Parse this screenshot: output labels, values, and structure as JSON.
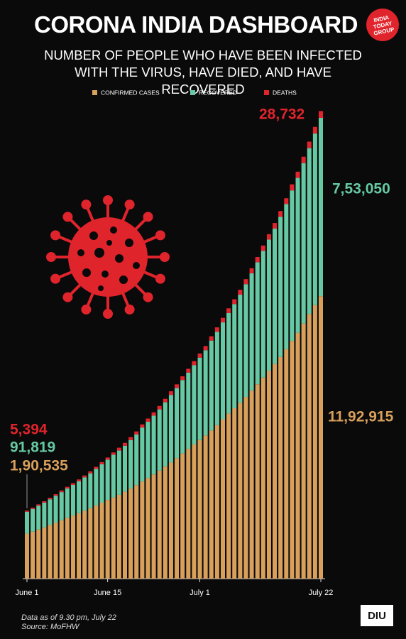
{
  "chart_data": {
    "type": "stacked-bar",
    "title": "CORONA INDIA DASHBOARD",
    "subtitle": "NUMBER OF PEOPLE WHO HAVE BEEN INFECTED WITH THE VIRUS, HAVE DIED, AND HAVE RECOVERED",
    "categories": [
      "June 1",
      null,
      null,
      null,
      null,
      null,
      null,
      null,
      null,
      null,
      null,
      null,
      null,
      null,
      "June 15",
      null,
      null,
      null,
      null,
      null,
      null,
      null,
      null,
      null,
      null,
      null,
      null,
      null,
      null,
      null,
      "July 1",
      null,
      null,
      null,
      null,
      null,
      null,
      null,
      null,
      null,
      null,
      null,
      null,
      null,
      null,
      null,
      null,
      null,
      null,
      null,
      null,
      "July 22"
    ],
    "series": [
      {
        "name": "CONFIRMED CASES",
        "color": "#d9a05b",
        "values": [
          190535,
          198706,
          207615,
          216919,
          226770,
          236657,
          246628,
          256611,
          266598,
          276583,
          286579,
          297535,
          308993,
          320922,
          332424,
          343091,
          354065,
          366946,
          380532,
          395048,
          410461,
          425282,
          440215,
          456183,
          473105,
          490401,
          508953,
          528859,
          548318,
          566840,
          585493,
          604641,
          625544,
          648315,
          673165,
          697413,
          719665,
          742417,
          767296,
          793802,
          820916,
          849553,
          878254,
          906752,
          936181,
          968876,
          1003832,
          1038716,
          1077618,
          1118043,
          1155191,
          1192915
        ],
        "value_labels": [
          "1,90,535",
          null,
          null,
          null,
          null,
          null,
          null,
          null,
          null,
          null,
          null,
          null,
          null,
          null,
          null,
          null,
          null,
          null,
          null,
          null,
          null,
          null,
          null,
          null,
          null,
          null,
          null,
          null,
          null,
          null,
          null,
          null,
          null,
          null,
          null,
          null,
          null,
          null,
          null,
          null,
          null,
          null,
          null,
          null,
          null,
          null,
          null,
          null,
          null,
          null,
          null,
          "11,92,915"
        ]
      },
      {
        "name": "RECOVERED",
        "color": "#66c9a4",
        "values": [
          91819,
          95527,
          100303,
          104107,
          108450,
          113233,
          118695,
          124095,
          129215,
          134670,
          141029,
          147195,
          154330,
          162379,
          169798,
          180013,
          186935,
          194325,
          204711,
          213831,
          227756,
          237196,
          248190,
          258685,
          271697,
          285637,
          295881,
          309713,
          321723,
          334822,
          347979,
          359860,
          379892,
          394227,
          409083,
          424433,
          439948,
          456831,
          476378,
          495513,
          515386,
          534621,
          553471,
          571460,
          592032,
          612815,
          635757,
          653751,
          677423,
          700087,
          724578,
          753050
        ],
        "value_labels": [
          "91,819",
          null,
          null,
          null,
          null,
          null,
          null,
          null,
          null,
          null,
          null,
          null,
          null,
          null,
          null,
          null,
          null,
          null,
          null,
          null,
          null,
          null,
          null,
          null,
          null,
          null,
          null,
          null,
          null,
          null,
          null,
          null,
          null,
          null,
          null,
          null,
          null,
          null,
          null,
          null,
          null,
          null,
          null,
          null,
          null,
          null,
          null,
          null,
          null,
          null,
          null,
          "7,53,050"
        ]
      },
      {
        "name": "DEATHS",
        "color": "#e0242c",
        "values": [
          5394,
          5598,
          5815,
          6075,
          6348,
          6642,
          6929,
          7200,
          7466,
          7745,
          8102,
          8498,
          8884,
          9195,
          9520,
          9900,
          11903,
          12237,
          12573,
          12948,
          13254,
          13699,
          14011,
          14476,
          14894,
          15301,
          15685,
          16095,
          16475,
          16893,
          17400,
          17834,
          18213,
          18655,
          19268,
          19693,
          20160,
          20642,
          21129,
          21604,
          22123,
          22674,
          23174,
          23727,
          24309,
          24915,
          25602,
          26273,
          26816,
          27497,
          28084,
          28732
        ],
        "value_labels": [
          "5,394",
          null,
          null,
          null,
          null,
          null,
          null,
          null,
          null,
          null,
          null,
          null,
          null,
          null,
          null,
          null,
          null,
          null,
          null,
          null,
          null,
          null,
          null,
          null,
          null,
          null,
          null,
          null,
          null,
          null,
          null,
          null,
          null,
          null,
          null,
          null,
          null,
          null,
          null,
          null,
          null,
          null,
          null,
          null,
          null,
          null,
          null,
          null,
          null,
          null,
          null,
          "28,732"
        ]
      }
    ],
    "ylim": [
      0,
      2000000
    ],
    "legend": "top",
    "notes": [
      "Data as of 9.30 pm, July 22",
      "Source: MoFHW"
    ]
  },
  "logos": [
    "INDIA TODAY GROUP",
    "DIU"
  ]
}
